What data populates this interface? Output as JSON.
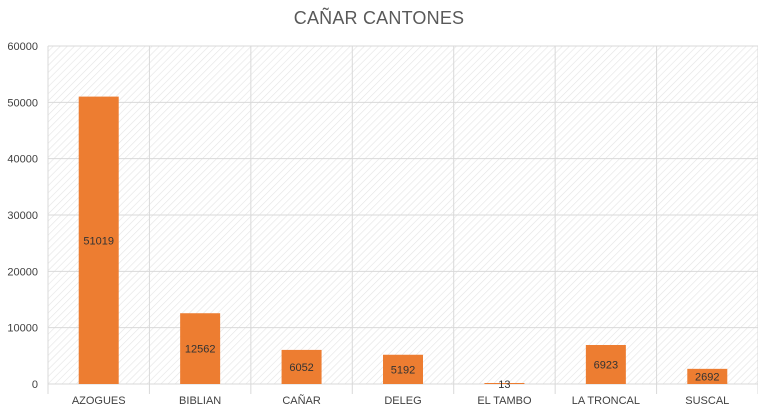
{
  "chart_data": {
    "type": "bar",
    "title": "CAÑAR CANTONES",
    "categories": [
      "AZOGUES",
      "BIBLIAN",
      "CAÑAR",
      "DELEG",
      "EL TAMBO",
      "LA TRONCAL",
      "SUSCAL"
    ],
    "values": [
      51019,
      12562,
      6052,
      5192,
      13,
      6923,
      2692
    ],
    "data_labels": [
      "51019",
      "12562",
      "6052",
      "5192",
      "13",
      "6923",
      "2692"
    ],
    "y_ticks": [
      0,
      10000,
      20000,
      30000,
      40000,
      50000,
      60000
    ],
    "y_tick_labels": [
      "0",
      "10000",
      "20000",
      "30000",
      "40000",
      "50000",
      "60000"
    ],
    "ylim": [
      0,
      60000
    ],
    "xlabel": "",
    "ylabel": "",
    "grid": true,
    "legend": "none",
    "bar_color": "#ED7D31",
    "grid_color": "#D9D9D9",
    "plot_pattern": "diagonal-hatch"
  }
}
